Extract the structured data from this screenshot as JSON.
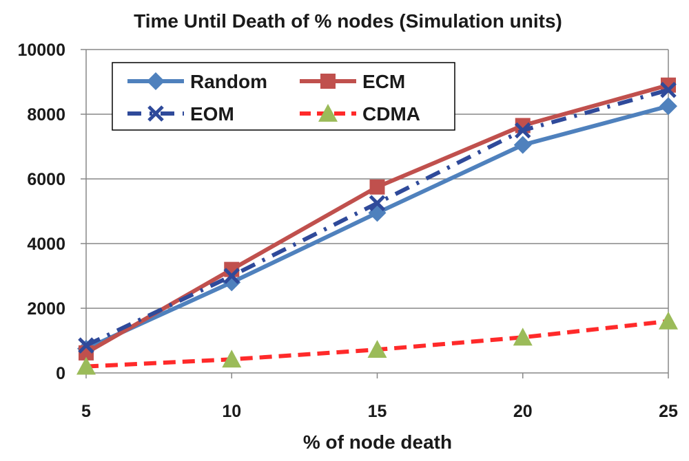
{
  "chart_data": {
    "type": "line",
    "title": "Time Until Death of % nodes (Simulation units)",
    "xlabel": "% of node death",
    "ylabel": "",
    "x": [
      5,
      10,
      15,
      20,
      25
    ],
    "ylim": [
      0,
      10000
    ],
    "yticks": [
      0,
      2000,
      4000,
      6000,
      8000,
      10000
    ],
    "grid": true,
    "legend_position": "top-left inside",
    "series": [
      {
        "name": "Random",
        "values": [
          750,
          2800,
          4950,
          7050,
          8250
        ],
        "color": "#4f81bd",
        "marker": "diamond",
        "line": "solid"
      },
      {
        "name": "ECM",
        "values": [
          620,
          3200,
          5750,
          7650,
          8900
        ],
        "color": "#c0504d",
        "marker": "square",
        "line": "solid"
      },
      {
        "name": "EOM",
        "values": [
          850,
          3000,
          5250,
          7500,
          8750
        ],
        "color": "#2f4a9a",
        "marker": "x",
        "line": "dashdot"
      },
      {
        "name": "CDMA",
        "values": [
          200,
          420,
          720,
          1100,
          1600
        ],
        "color": "#ff2a2a",
        "marker": "triangle",
        "line": "dashed",
        "marker_color": "#9bbb59"
      }
    ]
  }
}
